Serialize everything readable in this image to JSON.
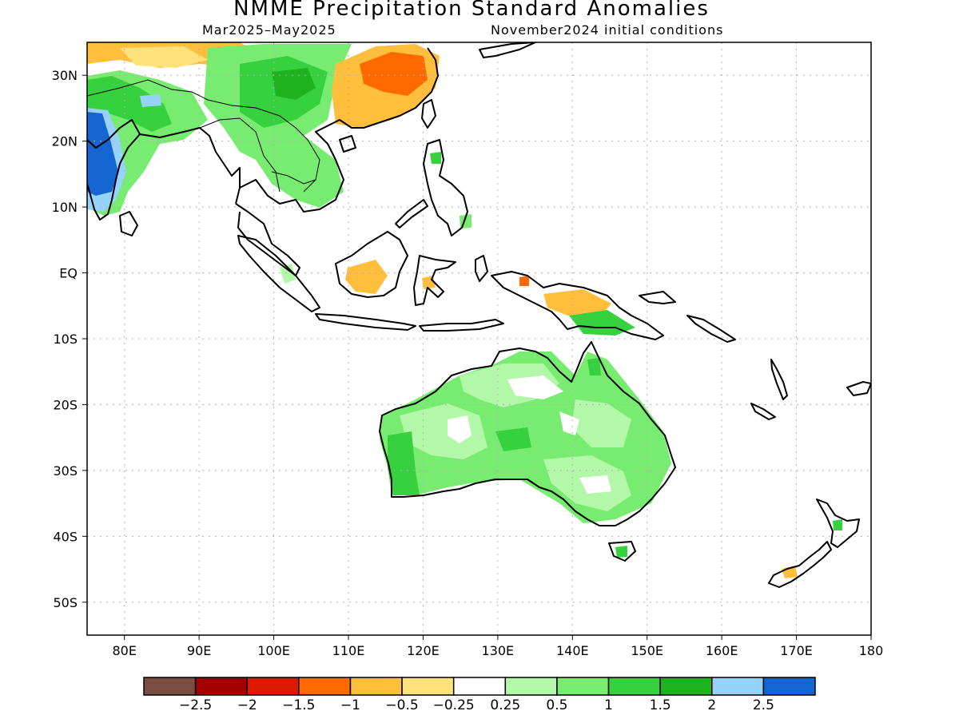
{
  "title": "NMME Precipitation Standard Anomalies",
  "period": "Mar2025–May2025",
  "initial_conditions": "November2024 initial conditions",
  "map": {
    "lon_range": [
      75,
      180
    ],
    "lat_range": [
      -55,
      35
    ],
    "lon_ticks": [
      {
        "v": 80,
        "label": "80E"
      },
      {
        "v": 90,
        "label": "90E"
      },
      {
        "v": 100,
        "label": "100E"
      },
      {
        "v": 110,
        "label": "110E"
      },
      {
        "v": 120,
        "label": "120E"
      },
      {
        "v": 130,
        "label": "130E"
      },
      {
        "v": 140,
        "label": "140E"
      },
      {
        "v": 150,
        "label": "150E"
      },
      {
        "v": 160,
        "label": "160E"
      },
      {
        "v": 170,
        "label": "170E"
      },
      {
        "v": 180,
        "label": "180"
      }
    ],
    "lat_ticks": [
      {
        "v": 30,
        "label": "30N"
      },
      {
        "v": 20,
        "label": "20N"
      },
      {
        "v": 10,
        "label": "10N"
      },
      {
        "v": 0,
        "label": "EQ"
      },
      {
        "v": -10,
        "label": "10S"
      },
      {
        "v": -20,
        "label": "20S"
      },
      {
        "v": -30,
        "label": "30S"
      },
      {
        "v": -40,
        "label": "40S"
      },
      {
        "v": -50,
        "label": "50S"
      }
    ]
  },
  "colorbar": {
    "colors": [
      "#7b4d40",
      "#a30000",
      "#dc1a00",
      "#ff6a00",
      "#ffbe3c",
      "#ffe27a",
      "#ffffff",
      "#b3f7a9",
      "#78ec70",
      "#37d13f",
      "#1fb21f",
      "#96d2fa",
      "#1464d2"
    ],
    "labels": [
      "−2.5",
      "−2",
      "−1.5",
      "−1",
      "−0.5",
      "−0.25",
      "0.25",
      "0.5",
      "1",
      "1.5",
      "2",
      "2.5"
    ]
  },
  "colors": {
    "light_green": "#b3f7a9",
    "green": "#78ec70",
    "mid_green": "#37d13f",
    "dark_green": "#1fb21f",
    "light_orange": "#ffbe3c",
    "orange": "#ff6a00",
    "yellow": "#ffe27a",
    "light_blue": "#96d2fa",
    "blue": "#1464d2",
    "white": "#ffffff"
  }
}
